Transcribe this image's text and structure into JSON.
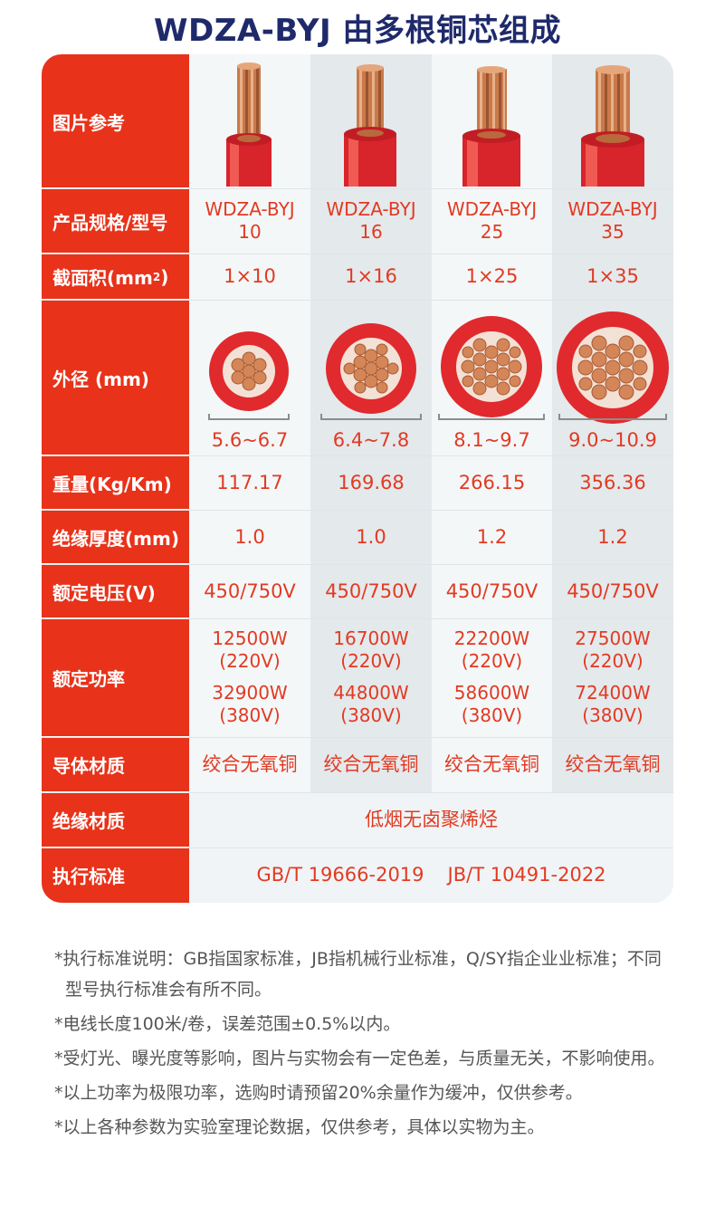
{
  "title": "WDZA-BYJ 由多根铜芯组成",
  "labels": {
    "picture": "图片参考",
    "model": "产品规格/型号",
    "section": "截面积(mm",
    "section_sup": "2",
    "section_end": ")",
    "diameter": "外径 (mm)",
    "weight": "重量(Kg/Km)",
    "insulation_thickness": "绝缘厚度(mm)",
    "voltage": "额定电压(V)",
    "power": "额定功率",
    "conductor": "导体材质",
    "insulation_material": "绝缘材质",
    "standard": "执行标准"
  },
  "columns": [
    {
      "model_a": "WDZA-BYJ",
      "model_b": "10",
      "section": "1×10",
      "diameter": "5.6~6.7",
      "weight": "117.17",
      "thickness": "1.0",
      "voltage": "450/750V",
      "power_1": "12500W",
      "power_1v": "(220V)",
      "power_2": "32900W",
      "power_2v": "(380V)",
      "conductor": "绞合无氧铜"
    },
    {
      "model_a": "WDZA-BYJ",
      "model_b": "16",
      "section": "1×16",
      "diameter": "6.4~7.8",
      "weight": "169.68",
      "thickness": "1.0",
      "voltage": "450/750V",
      "power_1": "16700W",
      "power_1v": "(220V)",
      "power_2": "44800W",
      "power_2v": "(380V)",
      "conductor": "绞合无氧铜"
    },
    {
      "model_a": "WDZA-BYJ",
      "model_b": "25",
      "section": "1×25",
      "diameter": "8.1~9.7",
      "weight": "266.15",
      "thickness": "1.2",
      "voltage": "450/750V",
      "power_1": "22200W",
      "power_1v": "(220V)",
      "power_2": "58600W",
      "power_2v": "(380V)",
      "conductor": "绞合无氧铜"
    },
    {
      "model_a": "WDZA-BYJ",
      "model_b": "35",
      "section": "1×35",
      "diameter": "9.0~10.9",
      "weight": "356.36",
      "thickness": "1.2",
      "voltage": "450/750V",
      "power_1": "27500W",
      "power_1v": "(220V)",
      "power_2": "72400W",
      "power_2v": "(380V)",
      "conductor": "绞合无氧铜"
    }
  ],
  "insulation_material": "低烟无卤聚烯烃",
  "standard_1": "GB/T 19666-2019",
  "standard_2": "JB/T 10491-2022",
  "notes": [
    "*执行标准说明：GB指国家标准，JB指机械行业标准，Q/SY指企业业标准；不同型号执行标准会有所不同。",
    "*电线长度100米/卷，误差范围±0.5%以内。",
    "*受灯光、曝光度等影响，图片与实物会有一定色差，与质量无关，不影响使用。",
    "*以上功率为极限功率，选购时请预留20%余量作为缓冲，仅供参考。",
    "*以上各种参数为实验室理论数据，仅供参考，具体以实物为主。"
  ],
  "colors": {
    "brand_red": "#e8321a",
    "value_red": "#e23a22",
    "title_navy": "#1f2a6b",
    "copper": "#c97a4a",
    "table_bg": "#f0f4f6"
  }
}
